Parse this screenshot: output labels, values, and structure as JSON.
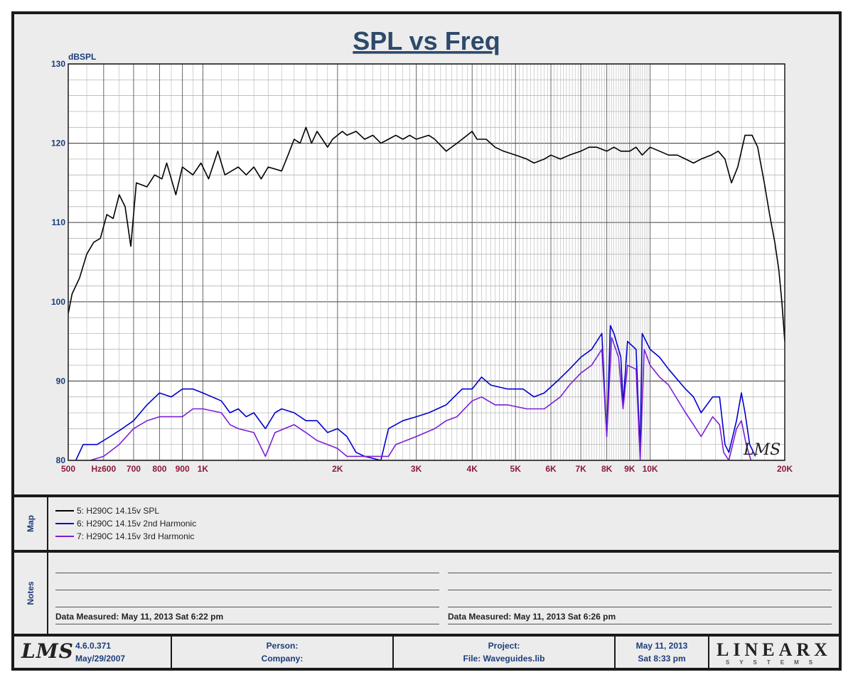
{
  "chart_data": {
    "type": "line",
    "title": "SPL vs Freq",
    "ylabel": "dBSPL",
    "ylim": [
      80,
      130
    ],
    "y_ticks": [
      "80",
      "90",
      "100",
      "110",
      "120",
      "130"
    ],
    "xlim": [
      500,
      20000
    ],
    "x_scale": "log",
    "x_tick_labels": [
      {
        "v": 500,
        "t": "500"
      },
      {
        "v": 600,
        "t": "Hz600"
      },
      {
        "v": 700,
        "t": "700"
      },
      {
        "v": 800,
        "t": "800"
      },
      {
        "v": 900,
        "t": "900"
      },
      {
        "v": 1000,
        "t": "1K"
      },
      {
        "v": 2000,
        "t": "2K"
      },
      {
        "v": 3000,
        "t": "3K"
      },
      {
        "v": 4000,
        "t": "4K"
      },
      {
        "v": 5000,
        "t": "5K"
      },
      {
        "v": 6000,
        "t": "6K"
      },
      {
        "v": 7000,
        "t": "7K"
      },
      {
        "v": 8000,
        "t": "8K"
      },
      {
        "v": 9000,
        "t": "9K"
      },
      {
        "v": 10000,
        "t": "10K"
      },
      {
        "v": 20000,
        "t": "20K"
      }
    ],
    "grid": true,
    "series": [
      {
        "name": "5: H290C 14.15v SPL",
        "color": "#000000",
        "points": [
          [
            500,
            98.5
          ],
          [
            510,
            101
          ],
          [
            530,
            103
          ],
          [
            550,
            106
          ],
          [
            570,
            107.5
          ],
          [
            590,
            108
          ],
          [
            610,
            111
          ],
          [
            630,
            110.5
          ],
          [
            650,
            113.5
          ],
          [
            670,
            112
          ],
          [
            690,
            107
          ],
          [
            710,
            115
          ],
          [
            750,
            114.5
          ],
          [
            780,
            116
          ],
          [
            810,
            115.5
          ],
          [
            830,
            117.5
          ],
          [
            870,
            113.5
          ],
          [
            900,
            117
          ],
          [
            950,
            116
          ],
          [
            990,
            117.5
          ],
          [
            1030,
            115.5
          ],
          [
            1080,
            119
          ],
          [
            1120,
            116
          ],
          [
            1200,
            117
          ],
          [
            1250,
            116
          ],
          [
            1300,
            117
          ],
          [
            1350,
            115.5
          ],
          [
            1400,
            117
          ],
          [
            1500,
            116.5
          ],
          [
            1550,
            118.5
          ],
          [
            1600,
            120.5
          ],
          [
            1650,
            120
          ],
          [
            1700,
            122
          ],
          [
            1750,
            120
          ],
          [
            1800,
            121.5
          ],
          [
            1850,
            120.5
          ],
          [
            1900,
            119.5
          ],
          [
            1950,
            120.5
          ],
          [
            2000,
            121
          ],
          [
            2050,
            121.5
          ],
          [
            2100,
            121
          ],
          [
            2200,
            121.5
          ],
          [
            2300,
            120.5
          ],
          [
            2400,
            121
          ],
          [
            2500,
            120
          ],
          [
            2600,
            120.5
          ],
          [
            2700,
            121
          ],
          [
            2800,
            120.5
          ],
          [
            2900,
            121
          ],
          [
            3000,
            120.5
          ],
          [
            3200,
            121
          ],
          [
            3300,
            120.5
          ],
          [
            3500,
            119
          ],
          [
            3700,
            120
          ],
          [
            3900,
            121
          ],
          [
            4000,
            121.5
          ],
          [
            4100,
            120.5
          ],
          [
            4300,
            120.5
          ],
          [
            4500,
            119.5
          ],
          [
            4700,
            119
          ],
          [
            5000,
            118.5
          ],
          [
            5300,
            118
          ],
          [
            5500,
            117.5
          ],
          [
            5800,
            118
          ],
          [
            6000,
            118.5
          ],
          [
            6300,
            118
          ],
          [
            6600,
            118.5
          ],
          [
            7000,
            119
          ],
          [
            7300,
            119.5
          ],
          [
            7600,
            119.5
          ],
          [
            8000,
            119
          ],
          [
            8300,
            119.5
          ],
          [
            8600,
            119
          ],
          [
            9000,
            119
          ],
          [
            9300,
            119.5
          ],
          [
            9600,
            118.5
          ],
          [
            10000,
            119.5
          ],
          [
            10500,
            119
          ],
          [
            11000,
            118.5
          ],
          [
            11500,
            118.5
          ],
          [
            12000,
            118
          ],
          [
            12500,
            117.5
          ],
          [
            13000,
            118
          ],
          [
            13700,
            118.5
          ],
          [
            14200,
            119
          ],
          [
            14700,
            118
          ],
          [
            15200,
            115
          ],
          [
            15700,
            117
          ],
          [
            16300,
            121
          ],
          [
            16900,
            121
          ],
          [
            17400,
            119.5
          ],
          [
            18000,
            115
          ],
          [
            18500,
            111
          ],
          [
            19000,
            107.5
          ],
          [
            19400,
            104
          ],
          [
            19700,
            100
          ],
          [
            20000,
            95
          ]
        ]
      },
      {
        "name": "6: H290C 14.15v 2nd Harmonic",
        "color": "#0000cc",
        "points": [
          [
            520,
            80
          ],
          [
            540,
            82
          ],
          [
            580,
            82
          ],
          [
            620,
            83
          ],
          [
            660,
            84
          ],
          [
            700,
            85
          ],
          [
            750,
            87
          ],
          [
            800,
            88.5
          ],
          [
            850,
            88
          ],
          [
            900,
            89
          ],
          [
            950,
            89
          ],
          [
            1000,
            88.5
          ],
          [
            1100,
            87.5
          ],
          [
            1150,
            86
          ],
          [
            1200,
            86.5
          ],
          [
            1250,
            85.5
          ],
          [
            1300,
            86
          ],
          [
            1380,
            84
          ],
          [
            1450,
            86
          ],
          [
            1500,
            86.5
          ],
          [
            1600,
            86
          ],
          [
            1700,
            85
          ],
          [
            1800,
            85
          ],
          [
            1900,
            83.5
          ],
          [
            2000,
            84
          ],
          [
            2100,
            83
          ],
          [
            2200,
            81
          ],
          [
            2300,
            80.5
          ],
          [
            2500,
            80
          ],
          [
            2600,
            84
          ],
          [
            2800,
            85
          ],
          [
            3000,
            85.5
          ],
          [
            3200,
            86
          ],
          [
            3500,
            87
          ],
          [
            3800,
            89
          ],
          [
            4000,
            89
          ],
          [
            4200,
            90.5
          ],
          [
            4400,
            89.5
          ],
          [
            4800,
            89
          ],
          [
            5200,
            89
          ],
          [
            5500,
            88
          ],
          [
            5800,
            88.5
          ],
          [
            6200,
            90
          ],
          [
            6600,
            91.5
          ],
          [
            7000,
            93
          ],
          [
            7400,
            94
          ],
          [
            7800,
            96
          ],
          [
            8000,
            83
          ],
          [
            8150,
            97
          ],
          [
            8300,
            96
          ],
          [
            8600,
            93
          ],
          [
            8700,
            87
          ],
          [
            8900,
            95
          ],
          [
            9300,
            94
          ],
          [
            9500,
            81
          ],
          [
            9600,
            96
          ],
          [
            10000,
            94
          ],
          [
            10500,
            93
          ],
          [
            11000,
            91.5
          ],
          [
            12000,
            89
          ],
          [
            12500,
            88
          ],
          [
            13000,
            86
          ],
          [
            13800,
            88
          ],
          [
            14300,
            88
          ],
          [
            14700,
            82
          ],
          [
            15000,
            81
          ],
          [
            15600,
            85
          ],
          [
            16000,
            88.5
          ],
          [
            16300,
            86
          ],
          [
            16700,
            82
          ],
          [
            17200,
            80.5
          ]
        ]
      },
      {
        "name": "7: H290C 14.15v 3rd Harmonic",
        "color": "#7b1fd6",
        "points": [
          [
            560,
            80
          ],
          [
            600,
            80.5
          ],
          [
            650,
            82
          ],
          [
            700,
            84
          ],
          [
            750,
            85
          ],
          [
            800,
            85.5
          ],
          [
            850,
            85.5
          ],
          [
            900,
            85.5
          ],
          [
            950,
            86.5
          ],
          [
            1000,
            86.5
          ],
          [
            1100,
            86
          ],
          [
            1150,
            84.5
          ],
          [
            1200,
            84
          ],
          [
            1300,
            83.5
          ],
          [
            1380,
            80.5
          ],
          [
            1450,
            83.5
          ],
          [
            1600,
            84.5
          ],
          [
            1700,
            83.5
          ],
          [
            1800,
            82.5
          ],
          [
            1900,
            82
          ],
          [
            2000,
            81.5
          ],
          [
            2100,
            80.5
          ],
          [
            2600,
            80.5
          ],
          [
            2700,
            82
          ],
          [
            3000,
            83
          ],
          [
            3300,
            84
          ],
          [
            3500,
            85
          ],
          [
            3700,
            85.5
          ],
          [
            4000,
            87.5
          ],
          [
            4200,
            88
          ],
          [
            4500,
            87
          ],
          [
            4800,
            87
          ],
          [
            5300,
            86.5
          ],
          [
            5800,
            86.5
          ],
          [
            6300,
            88
          ],
          [
            6600,
            89.5
          ],
          [
            7000,
            91
          ],
          [
            7400,
            92
          ],
          [
            7800,
            94
          ],
          [
            8000,
            83
          ],
          [
            8200,
            95.5
          ],
          [
            8500,
            93
          ],
          [
            8700,
            86.5
          ],
          [
            8900,
            92
          ],
          [
            9300,
            91.5
          ],
          [
            9500,
            80
          ],
          [
            9700,
            94
          ],
          [
            10000,
            92
          ],
          [
            10500,
            90.5
          ],
          [
            11000,
            89.5
          ],
          [
            12000,
            86
          ],
          [
            12500,
            84.5
          ],
          [
            13000,
            83
          ],
          [
            13800,
            85.5
          ],
          [
            14300,
            84.5
          ],
          [
            14600,
            81
          ],
          [
            15000,
            80
          ],
          [
            15600,
            84
          ],
          [
            16000,
            85
          ],
          [
            16400,
            82
          ],
          [
            16800,
            80
          ]
        ]
      }
    ]
  },
  "map": {
    "label": "Map",
    "entries": [
      {
        "label": "5: H290C 14.15v SPL",
        "color": "#000000"
      },
      {
        "label": "6: H290C 14.15v 2nd Harmonic",
        "color": "#0000cc"
      },
      {
        "label": "7: H290C 14.15v 3rd Harmonic",
        "color": "#7b1fd6"
      }
    ]
  },
  "notes": {
    "label": "Notes",
    "left_measured": "Data Measured: May 11, 2013  Sat  6:22 pm",
    "right_measured": "Data Measured: May 11, 2013  Sat  6:26 pm"
  },
  "footer": {
    "logo": "LMS",
    "version": "4.6.0.371",
    "version_date": "May/29/2007",
    "person_label": "Person:",
    "company_label": "Company:",
    "project_label": "Project:",
    "file_label": "File: Waveguides.lib",
    "date": "May 11, 2013",
    "time": "Sat  8:33 pm",
    "brand": "LINEARX",
    "brand_sub": "SYSTEMS"
  },
  "watermark": "LMS",
  "colors": {
    "axis_tick": "#1b3d7a",
    "x_tick": "#8b1a3a",
    "title": "#2d4a6b",
    "grid": "#8a8a8a"
  }
}
